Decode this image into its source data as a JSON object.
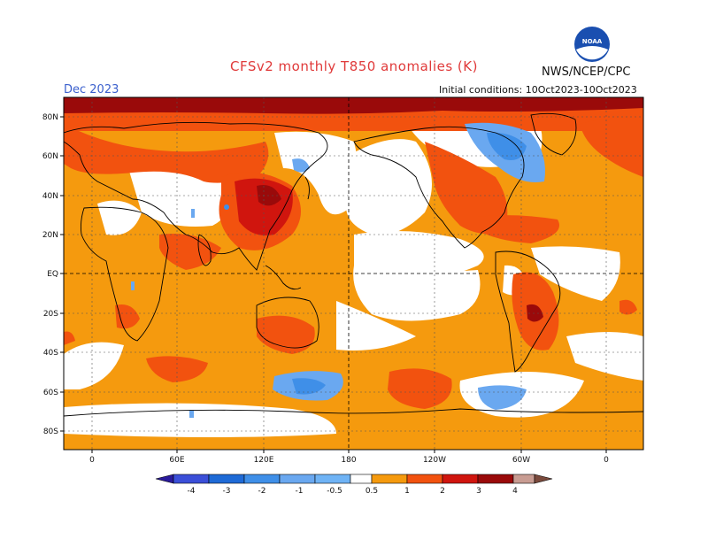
{
  "header": {
    "title": "CFSv2 monthly T850 anomalies (K)",
    "agency": "NWS/NCEP/CPC",
    "logo_text": "NOAA",
    "month": "Dec 2023",
    "initial_conditions": "Initial conditions: 10Oct2023-10Oct2023"
  },
  "axes": {
    "lat_labels": [
      "80N",
      "60N",
      "40N",
      "20N",
      "EQ",
      "20S",
      "40S",
      "60S",
      "80S"
    ],
    "lon_labels": [
      "0",
      "60E",
      "120E",
      "180",
      "120W",
      "60W",
      "0"
    ]
  },
  "legend": {
    "labels": [
      "-4",
      "-3",
      "-2",
      "-1",
      "-0.5",
      "0.5",
      "1",
      "2",
      "3",
      "4"
    ],
    "colors": [
      "#2a1a9c",
      "#3b4fd8",
      "#1e6ad6",
      "#3f8fe8",
      "#6aa8f0",
      "#ffffff",
      "#f59a0e",
      "#f2520f",
      "#d0150e",
      "#9a0a0a",
      "#c89c92",
      "#7a4a3c"
    ]
  },
  "colors": {
    "orange": "#f59a0e",
    "red_orange": "#f2520f",
    "red": "#d0150e",
    "dark_red": "#9a0a0a",
    "light_blue": "#6aa8f0",
    "blue": "#3f8fe8",
    "title": "#e03a3a",
    "month": "#3a5fcd"
  }
}
